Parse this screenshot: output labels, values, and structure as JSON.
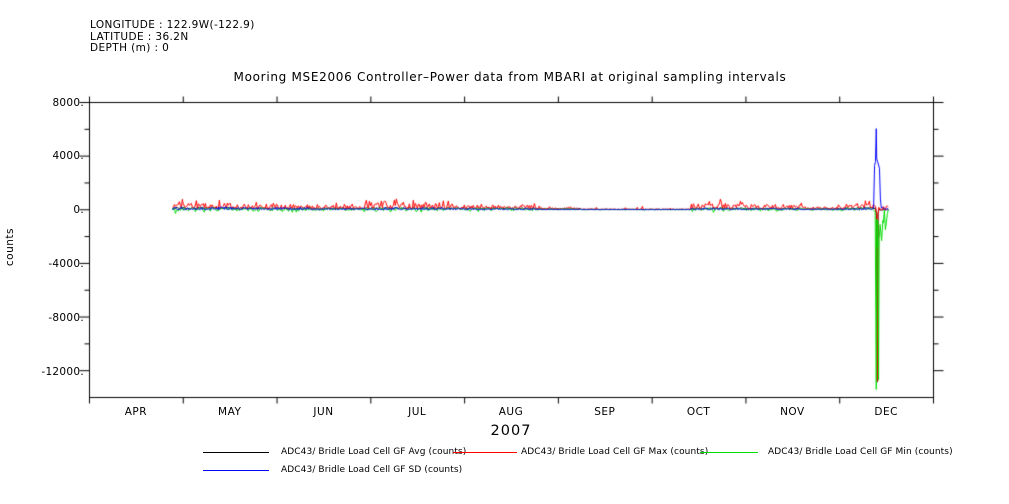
{
  "header": {
    "line1": "LONGITUDE : 122.9W(-122.9)",
    "line2": "LATITUDE : 36.2N",
    "line3": "DEPTH (m) : 0"
  },
  "title": "Mooring MSE2006 Controller–Power data from MBARI at original sampling intervals",
  "chart_data": {
    "type": "line",
    "title": "Mooring MSE2006 Controller–Power data from MBARI at original sampling intervals",
    "ylabel": "counts",
    "xlabel": "2007",
    "ylim": [
      -14000,
      8000
    ],
    "grid": false,
    "ytick_values": [
      8000,
      4000,
      0,
      -4000,
      -8000,
      -12000
    ],
    "ytick_labels": [
      "8000.",
      "4000.",
      "0.",
      "-4000.",
      "-8000.",
      "-12000."
    ],
    "yminor_values": [
      6000,
      2000,
      -2000,
      -6000,
      -10000
    ],
    "month_labels": [
      "APR",
      "MAY",
      "JUN",
      "JUL",
      "AUG",
      "SEP",
      "OCT",
      "NOV",
      "DEC"
    ],
    "x_span_days": 275,
    "data_start_day": 27,
    "data_end_day": 260.5,
    "series": [
      {
        "name": "ADC43/ Bridle Load Cell GF Avg (counts)",
        "color": "#000000",
        "role": "avg"
      },
      {
        "name": "ADC43/ Bridle Load Cell GF Max (counts)",
        "color": "#ff0000",
        "role": "max"
      },
      {
        "name": "ADC43/ Bridle Load Cell GF Min (counts)",
        "color": "#00dd00",
        "role": "min"
      },
      {
        "name": "ADC43/ Bridle Load Cell GF SD (counts)",
        "color": "#0000ff",
        "role": "sd"
      }
    ],
    "description": "All four series hover near 0 counts (roughly -300 to +800) from late April through mid December, with noisier spans in May, July and October-November, a very quiet span mid-August to September, then a large transient in mid December: SD spikes to ~+6000 (broad mass ~+3800) while Min/Max/Avg plunge to about -13400/-12800/-12850 before the record ends.",
    "noise_profile": [
      {
        "d0": 27,
        "d1": 48,
        "avg": 130,
        "avg_jit": 120,
        "max_amp": 420,
        "min_dip": 260,
        "sd_amp": 220,
        "spike_prob": 0.25,
        "spike_amp": 350
      },
      {
        "d0": 48,
        "d1": 72,
        "avg": 110,
        "avg_jit": 100,
        "max_amp": 330,
        "min_dip": 220,
        "sd_amp": 180,
        "spike_prob": 0.2,
        "spike_amp": 300
      },
      {
        "d0": 72,
        "d1": 90,
        "avg": 90,
        "avg_jit": 70,
        "max_amp": 220,
        "min_dip": 150,
        "sd_amp": 130,
        "spike_prob": 0.15,
        "spike_amp": 250
      },
      {
        "d0": 90,
        "d1": 117,
        "avg": 120,
        "avg_jit": 100,
        "max_amp": 400,
        "min_dip": 200,
        "sd_amp": 170,
        "spike_prob": 0.25,
        "spike_amp": 420
      },
      {
        "d0": 117,
        "d1": 145,
        "avg": 110,
        "avg_jit": 80,
        "max_amp": 250,
        "min_dip": 160,
        "sd_amp": 130,
        "spike_prob": 0.15,
        "spike_amp": 250
      },
      {
        "d0": 145,
        "d1": 160,
        "avg": 60,
        "avg_jit": 40,
        "max_amp": 120,
        "min_dip": 80,
        "sd_amp": 60,
        "spike_prob": 0.1,
        "spike_amp": 150
      },
      {
        "d0": 160,
        "d1": 196,
        "avg": 25,
        "avg_jit": 20,
        "max_amp": 40,
        "min_dip": 30,
        "sd_amp": 25,
        "spike_prob": 0.06,
        "spike_amp": 280
      },
      {
        "d0": 196,
        "d1": 217,
        "avg": 100,
        "avg_jit": 80,
        "max_amp": 380,
        "min_dip": 170,
        "sd_amp": 140,
        "spike_prob": 0.25,
        "spike_amp": 320
      },
      {
        "d0": 217,
        "d1": 232,
        "avg": 90,
        "avg_jit": 70,
        "max_amp": 280,
        "min_dip": 150,
        "sd_amp": 120,
        "spike_prob": 0.18,
        "spike_amp": 260
      },
      {
        "d0": 232,
        "d1": 246,
        "avg": 60,
        "avg_jit": 50,
        "max_amp": 180,
        "min_dip": 100,
        "sd_amp": 80,
        "spike_prob": 0.12,
        "spike_amp": 220
      },
      {
        "d0": 246,
        "d1": 255.5,
        "avg": 110,
        "avg_jit": 90,
        "max_amp": 330,
        "min_dip": 130,
        "sd_amp": 160,
        "spike_prob": 0.35,
        "spike_amp": 280
      },
      {
        "d0": 257.3,
        "d1": 260.5,
        "avg": 0,
        "avg_jit": 60,
        "max_amp": 120,
        "min_dip": 1200,
        "sd_amp": 260,
        "spike_prob": 0.35,
        "spike_amp": 250
      }
    ],
    "event": {
      "day": 256.4,
      "peaks": {
        "sd_peak": 6050,
        "sd_broad": 3800,
        "min_peak": -13400,
        "max_peak": -12800,
        "avg_peak": -12850
      },
      "keyframes": {
        "sd": [
          [
            255.5,
            250
          ],
          [
            255.8,
            3300
          ],
          [
            256.1,
            3600
          ],
          [
            256.35,
            6050
          ],
          [
            256.5,
            3800
          ],
          [
            256.9,
            3500
          ],
          [
            257.4,
            3100
          ],
          [
            257.7,
            800
          ],
          [
            257.9,
            350
          ]
        ],
        "min": [
          [
            256.0,
            -150
          ],
          [
            256.35,
            -13400
          ],
          [
            256.55,
            -700
          ],
          [
            256.7,
            -2800
          ],
          [
            256.85,
            -800
          ],
          [
            257.1,
            -12700
          ],
          [
            257.3,
            -2200
          ],
          [
            257.6,
            -1100
          ],
          [
            258.1,
            -2300
          ],
          [
            258.5,
            -800
          ]
        ],
        "max": [
          [
            256.1,
            250
          ],
          [
            256.5,
            -300
          ],
          [
            256.7,
            -12800
          ],
          [
            256.9,
            -350
          ],
          [
            257.2,
            180
          ]
        ],
        "avg": [
          [
            256.1,
            120
          ],
          [
            256.4,
            -400
          ],
          [
            256.7,
            -12850
          ],
          [
            256.95,
            -250
          ],
          [
            257.3,
            60
          ]
        ]
      }
    },
    "legend_position": "below"
  }
}
